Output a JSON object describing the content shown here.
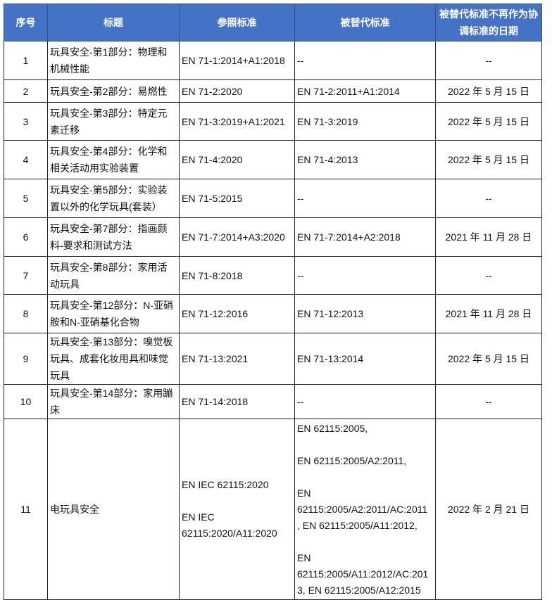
{
  "header_color": "#4472c4",
  "columns": [
    "序号",
    "标题",
    "参照标准",
    "被替代标准",
    "被替代标准不再作为协调标准的日期"
  ],
  "rows": [
    [
      "1",
      "玩具安全-第1部分：物理和机械性能",
      "EN 71-1:2014+A1:2018",
      "--",
      "--"
    ],
    [
      "2",
      "玩具安全-第2部分：易燃性",
      "EN 71-2:2020",
      "EN 71-2:2011+A1:2014",
      "2022 年 5 月 15 日"
    ],
    [
      "3",
      "玩具安全-第3部分：特定元素迁移",
      "EN 71-3:2019+A1:2021",
      "EN 71-3:2019",
      "2022 年 5 月 15 日"
    ],
    [
      "4",
      "玩具安全-第4部分：化学和相关活动用实验装置",
      "EN 71-4:2020",
      "EN 71-4:2013",
      "2022 年 5 月 15 日"
    ],
    [
      "5",
      "玩具安全-第5部分：实验装置以外的化学玩具(套装）",
      "EN 71-5:2015",
      "--",
      "--"
    ],
    [
      "6",
      "玩具安全-第7部分：指画颜料-要求和测试方法",
      "EN 71-7:2014+A3:2020",
      "EN 71-7:2014+A2:2018",
      "2021 年 11 月 28 日"
    ],
    [
      "7",
      "玩具安全-第8部分：家用活动玩具",
      "EN 71-8:2018",
      "--",
      "--"
    ],
    [
      "8",
      "玩具安全-第12部分：N-亚硝胺和N-亚硝基化合物",
      "EN 71-12:2016",
      "EN 71-12:2013",
      "2021 年 11 月 28 日"
    ],
    [
      "9",
      "玩具安全-第13部分：嗅觉板玩具、成套化妆用具和味觉玩具",
      "EN 71-13:2021",
      "EN 71-13:2014",
      "2022 年 5 月 15 日"
    ],
    [
      "10",
      "玩具安全-第14部分：家用蹦床",
      "EN 71-14:2018",
      "--",
      "--"
    ],
    [
      "11",
      "电玩具安全",
      "EN IEC 62115:2020\n\nEN IEC\n62115:2020/A11:2020",
      "EN 62115:2005,\n\nEN 62115:2005/A2:2011,\n\nEN\n62115:2005/A2:2011/AC:2011\n, EN 62115:2005/A11:2012,\n\nEN\n62115:2005/A11:2012/AC:201\n3, EN 62115:2005/A12:2015",
      "2022 年 2 月 21 日"
    ]
  ]
}
